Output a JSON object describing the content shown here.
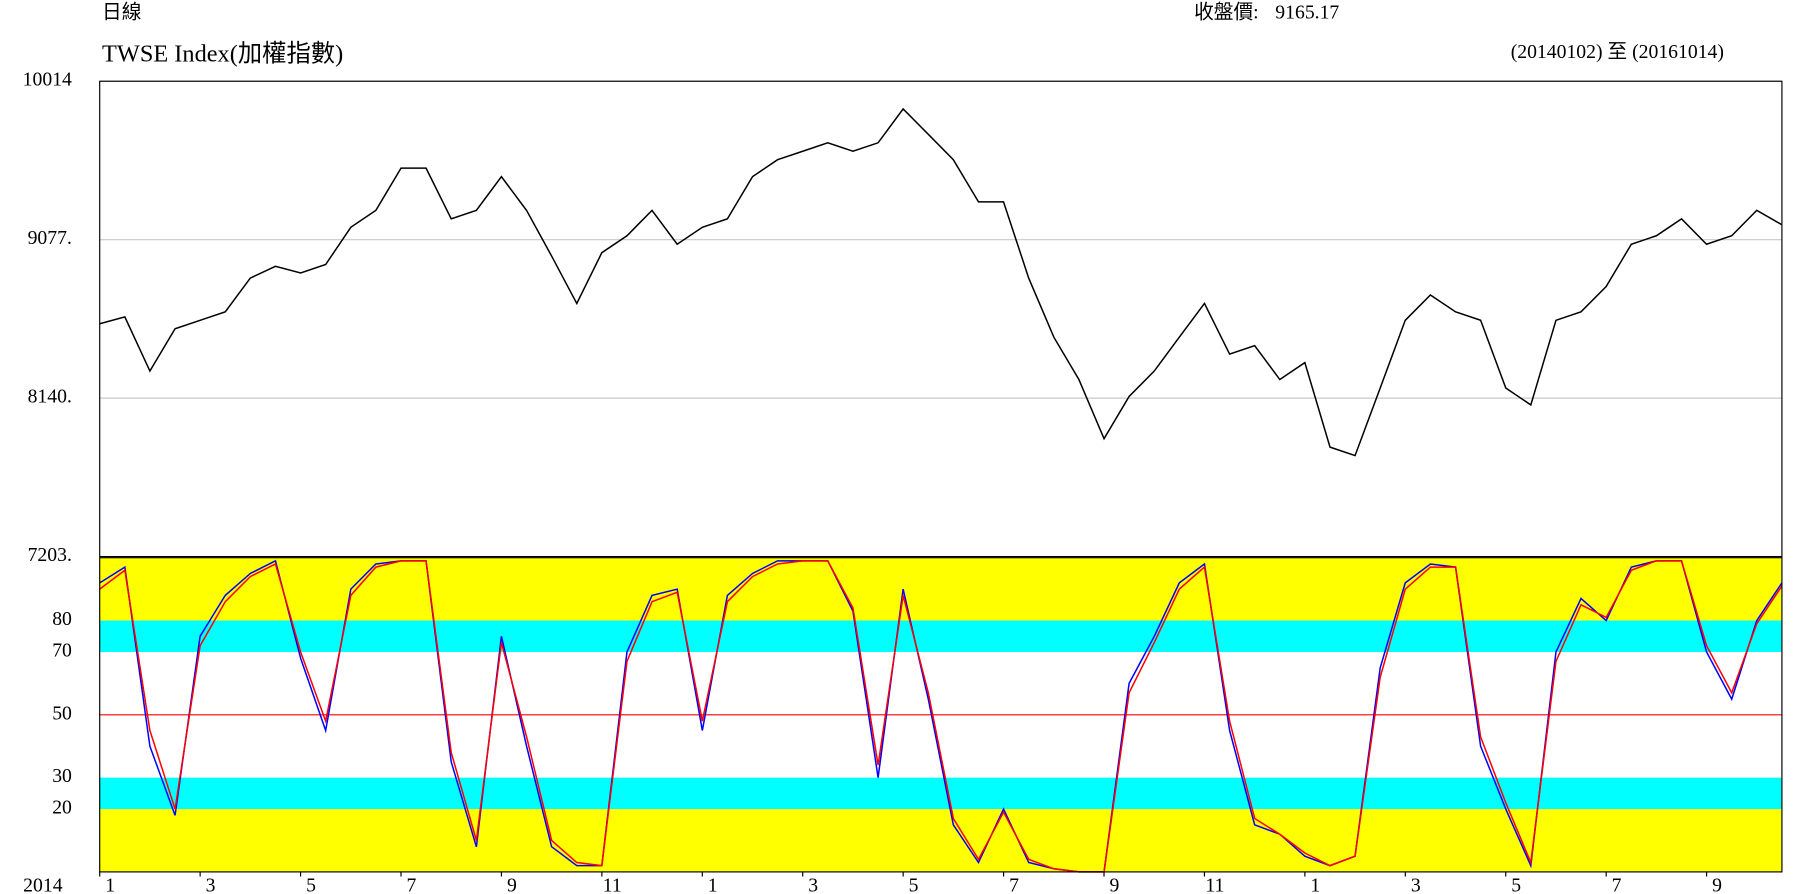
{
  "chart_data": [
    {
      "type": "line",
      "period": "日線",
      "title": "TWSE Index(加權指數)",
      "close_label": "收盤價:",
      "close_value": 9165.17,
      "date_range": "(20140102) 至 (20161014)",
      "x": [
        0,
        0.5,
        1,
        1.5,
        2,
        2.5,
        3,
        3.5,
        4,
        4.5,
        5,
        5.5,
        6,
        6.5,
        7,
        7.5,
        8,
        8.5,
        9,
        9.5,
        10,
        10.5,
        11,
        11.5,
        12,
        12.5,
        13,
        13.5,
        14,
        14.5,
        15,
        15.5,
        16,
        16.5,
        17,
        17.5,
        18,
        18.5,
        19,
        19.5,
        20,
        20.5,
        21,
        21.5,
        22,
        22.5,
        23,
        23.5,
        24,
        24.5,
        25,
        25.5,
        26,
        26.5,
        27,
        27.5,
        28,
        28.5,
        29,
        29.5,
        30,
        30.5,
        31,
        31.5,
        32,
        32.5,
        33,
        33.5
      ],
      "xlim": [
        0,
        33.5
      ],
      "ylim": [
        7203,
        10014
      ],
      "yticks": [
        10014,
        {
          "value": 9077,
          "label": "9077."
        },
        {
          "value": 8140,
          "label": "8140."
        },
        {
          "value": 7203,
          "label": "7203."
        }
      ],
      "grid": true,
      "series": [
        {
          "color": "#000000",
          "values": [
            8580,
            8620,
            8300,
            8550,
            8600,
            8650,
            8850,
            8920,
            8880,
            8930,
            9150,
            9250,
            9500,
            9500,
            9200,
            9250,
            9450,
            9250,
            8980,
            8700,
            9000,
            9100,
            9250,
            9050,
            9150,
            9200,
            9450,
            9550,
            9600,
            9650,
            9600,
            9650,
            9850,
            9700,
            9550,
            9300,
            9300,
            8850,
            8500,
            8250,
            7900,
            8150,
            8300,
            8500,
            8700,
            8400,
            8450,
            8250,
            8350,
            7850,
            7800,
            8200,
            8600,
            8750,
            8650,
            8600,
            8200,
            8100,
            8600,
            8650,
            8800,
            9050,
            9100,
            9200,
            9050,
            9100,
            9250,
            9165
          ]
        }
      ]
    },
    {
      "type": "line",
      "x": [
        0,
        0.5,
        1,
        1.5,
        2,
        2.5,
        3,
        3.5,
        4,
        4.5,
        5,
        5.5,
        6,
        6.5,
        7,
        7.5,
        8,
        8.5,
        9,
        9.5,
        10,
        10.5,
        11,
        11.5,
        12,
        12.5,
        13,
        13.5,
        14,
        14.5,
        15,
        15.5,
        16,
        16.5,
        17,
        17.5,
        18,
        18.5,
        19,
        19.5,
        20,
        20.5,
        21,
        21.5,
        22,
        22.5,
        23,
        23.5,
        24,
        24.5,
        25,
        25.5,
        26,
        26.5,
        27,
        27.5,
        28,
        28.5,
        29,
        29.5,
        30,
        30.5,
        31,
        31.5,
        32,
        32.5,
        33,
        33.5
      ],
      "xlim": [
        0,
        33.5
      ],
      "xlabel": "2014",
      "xticks": [
        {
          "value": 0,
          "label": "1"
        },
        {
          "value": 2,
          "label": "3"
        },
        {
          "value": 4,
          "label": "5"
        },
        {
          "value": 6,
          "label": "7"
        },
        {
          "value": 8,
          "label": "9"
        },
        {
          "value": 10,
          "label": "11"
        },
        {
          "value": 12,
          "label": "1"
        },
        {
          "value": 14,
          "label": "3"
        },
        {
          "value": 16,
          "label": "5"
        },
        {
          "value": 18,
          "label": "7"
        },
        {
          "value": 20,
          "label": "9"
        },
        {
          "value": 22,
          "label": "11"
        },
        {
          "value": 24,
          "label": "1"
        },
        {
          "value": 26,
          "label": "3"
        },
        {
          "value": 28,
          "label": "5"
        },
        {
          "value": 30,
          "label": "7"
        },
        {
          "value": 32,
          "label": "9"
        }
      ],
      "ylim": [
        0,
        100
      ],
      "yticks": [
        80,
        70,
        50,
        30,
        20
      ],
      "bands": [
        {
          "from": 80,
          "to": 100,
          "color": "#ffff00"
        },
        {
          "from": 70,
          "to": 80,
          "color": "#00ffff"
        },
        {
          "from": 20,
          "to": 30,
          "color": "#00ffff"
        },
        {
          "from": 0,
          "to": 20,
          "color": "#ffff00"
        }
      ],
      "hline": 50,
      "hline_color": "#ff0000",
      "series": [
        {
          "color": "#0000ff",
          "values": [
            92,
            97,
            40,
            18,
            75,
            88,
            95,
            99,
            68,
            45,
            90,
            98,
            99,
            99,
            35,
            8,
            75,
            40,
            8,
            2,
            2,
            70,
            88,
            90,
            45,
            88,
            95,
            99,
            99,
            99,
            83,
            30,
            90,
            55,
            15,
            3,
            20,
            3,
            1,
            0,
            0,
            60,
            75,
            92,
            98,
            45,
            15,
            12,
            5,
            2,
            5,
            65,
            92,
            98,
            97,
            40,
            20,
            2,
            70,
            87,
            80,
            97,
            99,
            99,
            70,
            55,
            80,
            92
          ]
        },
        {
          "color": "#ff0000",
          "values": [
            90,
            96,
            45,
            20,
            72,
            86,
            94,
            98,
            70,
            48,
            88,
            97,
            99,
            99,
            38,
            10,
            73,
            43,
            10,
            3,
            2,
            67,
            86,
            89,
            48,
            86,
            94,
            98,
            99,
            99,
            84,
            34,
            88,
            57,
            17,
            4,
            19,
            4,
            1,
            0,
            0,
            57,
            73,
            90,
            97,
            48,
            17,
            12,
            6,
            2,
            5,
            62,
            90,
            97,
            97,
            43,
            22,
            3,
            67,
            85,
            81,
            96,
            99,
            99,
            72,
            57,
            79,
            91
          ]
        }
      ]
    }
  ]
}
